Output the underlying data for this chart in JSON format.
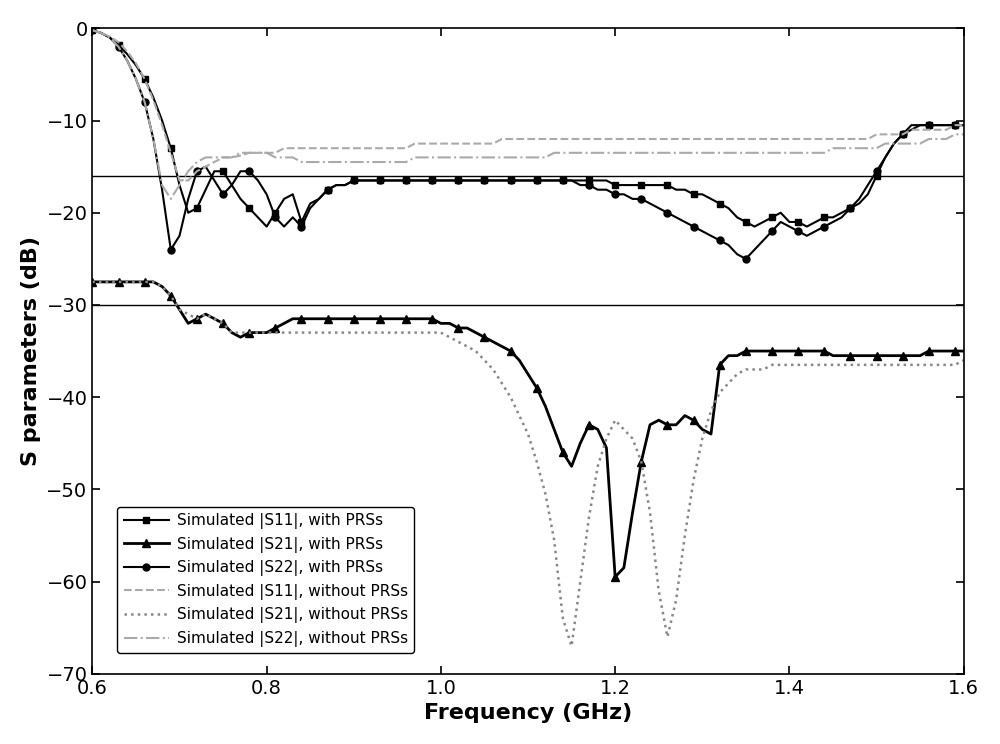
{
  "title": "",
  "xlabel": "Frequency (GHz)",
  "ylabel": "S parameters (dB)",
  "xlim": [
    0.6,
    1.6
  ],
  "ylim": [
    -70,
    0
  ],
  "yticks": [
    0,
    -10,
    -20,
    -30,
    -40,
    -50,
    -60,
    -70
  ],
  "xticks": [
    0.6,
    0.8,
    1.0,
    1.2,
    1.4,
    1.6
  ],
  "hlines": [
    -16,
    -30
  ],
  "background_color": "#ffffff",
  "legend_loc": "lower left",
  "series_order": [
    "S11_with",
    "S21_with",
    "S22_with",
    "S11_without",
    "S21_without",
    "S22_without"
  ],
  "series": {
    "S11_with": {
      "label": "Simulated |S11|, with PRSs",
      "color": "#000000",
      "linestyle": "-",
      "marker": "s",
      "markersize": 5,
      "linewidth": 1.5,
      "markevery": 3,
      "x": [
        0.6,
        0.61,
        0.62,
        0.63,
        0.64,
        0.65,
        0.66,
        0.67,
        0.68,
        0.69,
        0.7,
        0.71,
        0.72,
        0.73,
        0.74,
        0.75,
        0.76,
        0.77,
        0.78,
        0.79,
        0.8,
        0.81,
        0.82,
        0.83,
        0.84,
        0.85,
        0.86,
        0.87,
        0.88,
        0.89,
        0.9,
        0.91,
        0.92,
        0.93,
        0.94,
        0.95,
        0.96,
        0.97,
        0.98,
        0.99,
        1.0,
        1.01,
        1.02,
        1.03,
        1.04,
        1.05,
        1.06,
        1.07,
        1.08,
        1.09,
        1.1,
        1.11,
        1.12,
        1.13,
        1.14,
        1.15,
        1.16,
        1.17,
        1.18,
        1.19,
        1.2,
        1.21,
        1.22,
        1.23,
        1.24,
        1.25,
        1.26,
        1.27,
        1.28,
        1.29,
        1.3,
        1.31,
        1.32,
        1.33,
        1.34,
        1.35,
        1.36,
        1.37,
        1.38,
        1.39,
        1.4,
        1.41,
        1.42,
        1.43,
        1.44,
        1.45,
        1.46,
        1.47,
        1.48,
        1.49,
        1.5,
        1.51,
        1.52,
        1.53,
        1.54,
        1.55,
        1.56,
        1.57,
        1.58,
        1.59,
        1.6
      ],
      "y": [
        -0.2,
        -0.5,
        -1.0,
        -1.8,
        -2.8,
        -4.0,
        -5.5,
        -7.5,
        -10.0,
        -13.0,
        -17.0,
        -20.0,
        -19.5,
        -17.5,
        -15.5,
        -15.5,
        -17.0,
        -18.5,
        -19.5,
        -20.5,
        -21.5,
        -20.0,
        -18.5,
        -18.0,
        -21.0,
        -19.0,
        -18.5,
        -17.5,
        -17.0,
        -17.0,
        -16.5,
        -16.5,
        -16.5,
        -16.5,
        -16.5,
        -16.5,
        -16.5,
        -16.5,
        -16.5,
        -16.5,
        -16.5,
        -16.5,
        -16.5,
        -16.5,
        -16.5,
        -16.5,
        -16.5,
        -16.5,
        -16.5,
        -16.5,
        -16.5,
        -16.5,
        -16.5,
        -16.5,
        -16.5,
        -16.5,
        -16.5,
        -16.5,
        -16.5,
        -16.5,
        -17.0,
        -17.0,
        -17.0,
        -17.0,
        -17.0,
        -17.0,
        -17.0,
        -17.5,
        -17.5,
        -18.0,
        -18.0,
        -18.5,
        -19.0,
        -19.5,
        -20.5,
        -21.0,
        -21.5,
        -21.0,
        -20.5,
        -20.0,
        -21.0,
        -21.0,
        -21.5,
        -21.0,
        -20.5,
        -20.5,
        -20.0,
        -19.5,
        -19.0,
        -18.0,
        -16.0,
        -14.0,
        -12.5,
        -11.5,
        -11.0,
        -10.5,
        -10.5,
        -10.5,
        -10.5,
        -10.5,
        -10.5
      ]
    },
    "S21_with": {
      "label": "Simulated |S21|, with PRSs",
      "color": "#000000",
      "linestyle": "-",
      "marker": "^",
      "markersize": 6,
      "linewidth": 2.0,
      "markevery": 3,
      "x": [
        0.6,
        0.61,
        0.62,
        0.63,
        0.64,
        0.65,
        0.66,
        0.67,
        0.68,
        0.69,
        0.7,
        0.71,
        0.72,
        0.73,
        0.74,
        0.75,
        0.76,
        0.77,
        0.78,
        0.79,
        0.8,
        0.81,
        0.82,
        0.83,
        0.84,
        0.85,
        0.86,
        0.87,
        0.88,
        0.89,
        0.9,
        0.91,
        0.92,
        0.93,
        0.94,
        0.95,
        0.96,
        0.97,
        0.98,
        0.99,
        1.0,
        1.01,
        1.02,
        1.03,
        1.04,
        1.05,
        1.06,
        1.07,
        1.08,
        1.09,
        1.1,
        1.11,
        1.12,
        1.13,
        1.14,
        1.15,
        1.16,
        1.17,
        1.18,
        1.19,
        1.2,
        1.21,
        1.22,
        1.23,
        1.24,
        1.25,
        1.26,
        1.27,
        1.28,
        1.29,
        1.3,
        1.31,
        1.32,
        1.33,
        1.34,
        1.35,
        1.36,
        1.37,
        1.38,
        1.39,
        1.4,
        1.41,
        1.42,
        1.43,
        1.44,
        1.45,
        1.46,
        1.47,
        1.48,
        1.49,
        1.5,
        1.51,
        1.52,
        1.53,
        1.54,
        1.55,
        1.56,
        1.57,
        1.58,
        1.59,
        1.6
      ],
      "y": [
        -27.5,
        -27.5,
        -27.5,
        -27.5,
        -27.5,
        -27.5,
        -27.5,
        -27.5,
        -28.0,
        -29.0,
        -30.5,
        -32.0,
        -31.5,
        -31.0,
        -31.5,
        -32.0,
        -33.0,
        -33.5,
        -33.0,
        -33.0,
        -33.0,
        -32.5,
        -32.0,
        -31.5,
        -31.5,
        -31.5,
        -31.5,
        -31.5,
        -31.5,
        -31.5,
        -31.5,
        -31.5,
        -31.5,
        -31.5,
        -31.5,
        -31.5,
        -31.5,
        -31.5,
        -31.5,
        -31.5,
        -32.0,
        -32.0,
        -32.5,
        -32.5,
        -33.0,
        -33.5,
        -34.0,
        -34.5,
        -35.0,
        -36.0,
        -37.5,
        -39.0,
        -41.0,
        -43.5,
        -46.0,
        -47.5,
        -45.0,
        -43.0,
        -43.5,
        -45.5,
        -59.5,
        -58.5,
        -52.5,
        -47.0,
        -43.0,
        -42.5,
        -43.0,
        -43.0,
        -42.0,
        -42.5,
        -43.5,
        -44.0,
        -36.5,
        -35.5,
        -35.5,
        -35.0,
        -35.0,
        -35.0,
        -35.0,
        -35.0,
        -35.0,
        -35.0,
        -35.0,
        -35.0,
        -35.0,
        -35.5,
        -35.5,
        -35.5,
        -35.5,
        -35.5,
        -35.5,
        -35.5,
        -35.5,
        -35.5,
        -35.5,
        -35.5,
        -35.0,
        -35.0,
        -35.0,
        -35.0,
        -35.0
      ]
    },
    "S22_with": {
      "label": "Simulated |S22|, with PRSs",
      "color": "#000000",
      "linestyle": "-",
      "marker": "o",
      "markersize": 5,
      "linewidth": 1.5,
      "markevery": 3,
      "x": [
        0.6,
        0.61,
        0.62,
        0.63,
        0.64,
        0.65,
        0.66,
        0.67,
        0.68,
        0.69,
        0.7,
        0.71,
        0.72,
        0.73,
        0.74,
        0.75,
        0.76,
        0.77,
        0.78,
        0.79,
        0.8,
        0.81,
        0.82,
        0.83,
        0.84,
        0.85,
        0.86,
        0.87,
        0.88,
        0.89,
        0.9,
        0.91,
        0.92,
        0.93,
        0.94,
        0.95,
        0.96,
        0.97,
        0.98,
        0.99,
        1.0,
        1.01,
        1.02,
        1.03,
        1.04,
        1.05,
        1.06,
        1.07,
        1.08,
        1.09,
        1.1,
        1.11,
        1.12,
        1.13,
        1.14,
        1.15,
        1.16,
        1.17,
        1.18,
        1.19,
        1.2,
        1.21,
        1.22,
        1.23,
        1.24,
        1.25,
        1.26,
        1.27,
        1.28,
        1.29,
        1.3,
        1.31,
        1.32,
        1.33,
        1.34,
        1.35,
        1.36,
        1.37,
        1.38,
        1.39,
        1.4,
        1.41,
        1.42,
        1.43,
        1.44,
        1.45,
        1.46,
        1.47,
        1.48,
        1.49,
        1.5,
        1.51,
        1.52,
        1.53,
        1.54,
        1.55,
        1.56,
        1.57,
        1.58,
        1.59,
        1.6
      ],
      "y": [
        -0.2,
        -0.5,
        -1.0,
        -2.0,
        -3.5,
        -5.5,
        -8.0,
        -12.0,
        -17.5,
        -24.0,
        -22.5,
        -18.5,
        -15.5,
        -15.0,
        -16.5,
        -18.0,
        -17.0,
        -15.5,
        -15.5,
        -16.5,
        -18.0,
        -20.5,
        -21.5,
        -20.5,
        -21.5,
        -19.5,
        -18.5,
        -17.5,
        -17.0,
        -17.0,
        -16.5,
        -16.5,
        -16.5,
        -16.5,
        -16.5,
        -16.5,
        -16.5,
        -16.5,
        -16.5,
        -16.5,
        -16.5,
        -16.5,
        -16.5,
        -16.5,
        -16.5,
        -16.5,
        -16.5,
        -16.5,
        -16.5,
        -16.5,
        -16.5,
        -16.5,
        -16.5,
        -16.5,
        -16.5,
        -16.5,
        -17.0,
        -17.0,
        -17.5,
        -17.5,
        -18.0,
        -18.0,
        -18.5,
        -18.5,
        -19.0,
        -19.5,
        -20.0,
        -20.5,
        -21.0,
        -21.5,
        -22.0,
        -22.5,
        -23.0,
        -23.5,
        -24.5,
        -25.0,
        -24.0,
        -23.0,
        -22.0,
        -21.0,
        -21.5,
        -22.0,
        -22.5,
        -22.0,
        -21.5,
        -21.0,
        -20.5,
        -19.5,
        -18.5,
        -17.0,
        -15.5,
        -14.0,
        -12.5,
        -11.5,
        -10.5,
        -10.5,
        -10.5,
        -10.5,
        -10.5,
        -10.5,
        -10.5
      ]
    },
    "S11_without": {
      "label": "Simulated |S11|, without PRSs",
      "color": "#aaaaaa",
      "linestyle": "--",
      "marker": null,
      "markersize": 0,
      "linewidth": 1.5,
      "markevery": 1,
      "x": [
        0.6,
        0.61,
        0.62,
        0.63,
        0.64,
        0.65,
        0.66,
        0.67,
        0.68,
        0.69,
        0.7,
        0.71,
        0.72,
        0.73,
        0.74,
        0.75,
        0.76,
        0.77,
        0.78,
        0.79,
        0.8,
        0.81,
        0.82,
        0.83,
        0.84,
        0.85,
        0.86,
        0.87,
        0.88,
        0.89,
        0.9,
        0.91,
        0.92,
        0.93,
        0.94,
        0.95,
        0.96,
        0.97,
        0.98,
        0.99,
        1.0,
        1.01,
        1.02,
        1.03,
        1.04,
        1.05,
        1.06,
        1.07,
        1.08,
        1.09,
        1.1,
        1.11,
        1.12,
        1.13,
        1.14,
        1.15,
        1.16,
        1.17,
        1.18,
        1.19,
        1.2,
        1.21,
        1.22,
        1.23,
        1.24,
        1.25,
        1.26,
        1.27,
        1.28,
        1.29,
        1.3,
        1.31,
        1.32,
        1.33,
        1.34,
        1.35,
        1.36,
        1.37,
        1.38,
        1.39,
        1.4,
        1.41,
        1.42,
        1.43,
        1.44,
        1.45,
        1.46,
        1.47,
        1.48,
        1.49,
        1.5,
        1.51,
        1.52,
        1.53,
        1.54,
        1.55,
        1.56,
        1.57,
        1.58,
        1.59,
        1.6
      ],
      "y": [
        -0.2,
        -0.5,
        -0.9,
        -1.5,
        -2.5,
        -3.8,
        -5.5,
        -7.8,
        -10.5,
        -13.5,
        -16.5,
        -16.5,
        -15.5,
        -15.0,
        -14.5,
        -14.0,
        -14.0,
        -13.8,
        -13.5,
        -13.5,
        -13.5,
        -13.5,
        -13.0,
        -13.0,
        -13.0,
        -13.0,
        -13.0,
        -13.0,
        -13.0,
        -13.0,
        -13.0,
        -13.0,
        -13.0,
        -13.0,
        -13.0,
        -13.0,
        -13.0,
        -12.5,
        -12.5,
        -12.5,
        -12.5,
        -12.5,
        -12.5,
        -12.5,
        -12.5,
        -12.5,
        -12.5,
        -12.0,
        -12.0,
        -12.0,
        -12.0,
        -12.0,
        -12.0,
        -12.0,
        -12.0,
        -12.0,
        -12.0,
        -12.0,
        -12.0,
        -12.0,
        -12.0,
        -12.0,
        -12.0,
        -12.0,
        -12.0,
        -12.0,
        -12.0,
        -12.0,
        -12.0,
        -12.0,
        -12.0,
        -12.0,
        -12.0,
        -12.0,
        -12.0,
        -12.0,
        -12.0,
        -12.0,
        -12.0,
        -12.0,
        -12.0,
        -12.0,
        -12.0,
        -12.0,
        -12.0,
        -12.0,
        -12.0,
        -12.0,
        -12.0,
        -12.0,
        -11.5,
        -11.5,
        -11.5,
        -11.5,
        -11.0,
        -11.0,
        -11.0,
        -11.0,
        -11.0,
        -10.5,
        -10.5
      ]
    },
    "S21_without": {
      "label": "Simulated |S21|, without PRSs",
      "color": "#888888",
      "linestyle": ":",
      "marker": null,
      "markersize": 0,
      "linewidth": 1.8,
      "markevery": 1,
      "x": [
        0.6,
        0.61,
        0.62,
        0.63,
        0.64,
        0.65,
        0.66,
        0.67,
        0.68,
        0.69,
        0.7,
        0.71,
        0.72,
        0.73,
        0.74,
        0.75,
        0.76,
        0.77,
        0.78,
        0.79,
        0.8,
        0.81,
        0.82,
        0.83,
        0.84,
        0.85,
        0.86,
        0.87,
        0.88,
        0.89,
        0.9,
        0.91,
        0.92,
        0.93,
        0.94,
        0.95,
        0.96,
        0.97,
        0.98,
        0.99,
        1.0,
        1.01,
        1.02,
        1.03,
        1.04,
        1.05,
        1.06,
        1.07,
        1.08,
        1.09,
        1.1,
        1.11,
        1.12,
        1.13,
        1.14,
        1.15,
        1.16,
        1.17,
        1.18,
        1.19,
        1.2,
        1.21,
        1.22,
        1.23,
        1.24,
        1.25,
        1.26,
        1.27,
        1.28,
        1.29,
        1.3,
        1.31,
        1.32,
        1.33,
        1.34,
        1.35,
        1.36,
        1.37,
        1.38,
        1.39,
        1.4,
        1.41,
        1.42,
        1.43,
        1.44,
        1.45,
        1.46,
        1.47,
        1.48,
        1.49,
        1.5,
        1.51,
        1.52,
        1.53,
        1.54,
        1.55,
        1.56,
        1.57,
        1.58,
        1.59,
        1.6
      ],
      "y": [
        -27.5,
        -27.5,
        -27.5,
        -27.5,
        -27.5,
        -27.5,
        -27.5,
        -27.5,
        -28.0,
        -29.0,
        -30.5,
        -31.0,
        -31.5,
        -31.0,
        -31.5,
        -32.0,
        -33.0,
        -33.0,
        -33.0,
        -33.0,
        -33.0,
        -33.0,
        -33.0,
        -33.0,
        -33.0,
        -33.0,
        -33.0,
        -33.0,
        -33.0,
        -33.0,
        -33.0,
        -33.0,
        -33.0,
        -33.0,
        -33.0,
        -33.0,
        -33.0,
        -33.0,
        -33.0,
        -33.0,
        -33.0,
        -33.5,
        -34.0,
        -34.5,
        -35.0,
        -36.0,
        -37.0,
        -38.5,
        -40.0,
        -42.0,
        -44.0,
        -47.0,
        -50.5,
        -55.5,
        -64.0,
        -67.0,
        -60.0,
        -53.0,
        -47.5,
        -44.5,
        -42.5,
        -43.5,
        -44.5,
        -47.0,
        -52.5,
        -61.0,
        -66.0,
        -62.0,
        -55.0,
        -49.0,
        -44.5,
        -41.5,
        -39.5,
        -38.5,
        -37.5,
        -37.0,
        -37.0,
        -37.0,
        -36.5,
        -36.5,
        -36.5,
        -36.5,
        -36.5,
        -36.5,
        -36.5,
        -36.5,
        -36.5,
        -36.5,
        -36.5,
        -36.5,
        -36.5,
        -36.5,
        -36.5,
        -36.5,
        -36.5,
        -36.5,
        -36.5,
        -36.5,
        -36.5,
        -36.5,
        -36.0
      ]
    },
    "S22_without": {
      "label": "Simulated |S22|, without PRSs",
      "color": "#aaaaaa",
      "linestyle": "-.",
      "marker": null,
      "markersize": 0,
      "linewidth": 1.5,
      "markevery": 1,
      "x": [
        0.6,
        0.61,
        0.62,
        0.63,
        0.64,
        0.65,
        0.66,
        0.67,
        0.68,
        0.69,
        0.7,
        0.71,
        0.72,
        0.73,
        0.74,
        0.75,
        0.76,
        0.77,
        0.78,
        0.79,
        0.8,
        0.81,
        0.82,
        0.83,
        0.84,
        0.85,
        0.86,
        0.87,
        0.88,
        0.89,
        0.9,
        0.91,
        0.92,
        0.93,
        0.94,
        0.95,
        0.96,
        0.97,
        0.98,
        0.99,
        1.0,
        1.01,
        1.02,
        1.03,
        1.04,
        1.05,
        1.06,
        1.07,
        1.08,
        1.09,
        1.1,
        1.11,
        1.12,
        1.13,
        1.14,
        1.15,
        1.16,
        1.17,
        1.18,
        1.19,
        1.2,
        1.21,
        1.22,
        1.23,
        1.24,
        1.25,
        1.26,
        1.27,
        1.28,
        1.29,
        1.3,
        1.31,
        1.32,
        1.33,
        1.34,
        1.35,
        1.36,
        1.37,
        1.38,
        1.39,
        1.4,
        1.41,
        1.42,
        1.43,
        1.44,
        1.45,
        1.46,
        1.47,
        1.48,
        1.49,
        1.5,
        1.51,
        1.52,
        1.53,
        1.54,
        1.55,
        1.56,
        1.57,
        1.58,
        1.59,
        1.6
      ],
      "y": [
        -0.2,
        -0.5,
        -1.0,
        -2.0,
        -3.5,
        -5.5,
        -8.0,
        -12.0,
        -17.0,
        -18.5,
        -17.0,
        -15.5,
        -14.5,
        -14.0,
        -14.0,
        -14.0,
        -14.0,
        -13.5,
        -13.5,
        -13.5,
        -13.5,
        -14.0,
        -14.0,
        -14.0,
        -14.5,
        -14.5,
        -14.5,
        -14.5,
        -14.5,
        -14.5,
        -14.5,
        -14.5,
        -14.5,
        -14.5,
        -14.5,
        -14.5,
        -14.5,
        -14.0,
        -14.0,
        -14.0,
        -14.0,
        -14.0,
        -14.0,
        -14.0,
        -14.0,
        -14.0,
        -14.0,
        -14.0,
        -14.0,
        -14.0,
        -14.0,
        -14.0,
        -14.0,
        -13.5,
        -13.5,
        -13.5,
        -13.5,
        -13.5,
        -13.5,
        -13.5,
        -13.5,
        -13.5,
        -13.5,
        -13.5,
        -13.5,
        -13.5,
        -13.5,
        -13.5,
        -13.5,
        -13.5,
        -13.5,
        -13.5,
        -13.5,
        -13.5,
        -13.5,
        -13.5,
        -13.5,
        -13.5,
        -13.5,
        -13.5,
        -13.5,
        -13.5,
        -13.5,
        -13.5,
        -13.5,
        -13.0,
        -13.0,
        -13.0,
        -13.0,
        -13.0,
        -13.0,
        -12.5,
        -12.5,
        -12.5,
        -12.5,
        -12.5,
        -12.0,
        -12.0,
        -12.0,
        -11.5,
        -11.5
      ]
    }
  }
}
